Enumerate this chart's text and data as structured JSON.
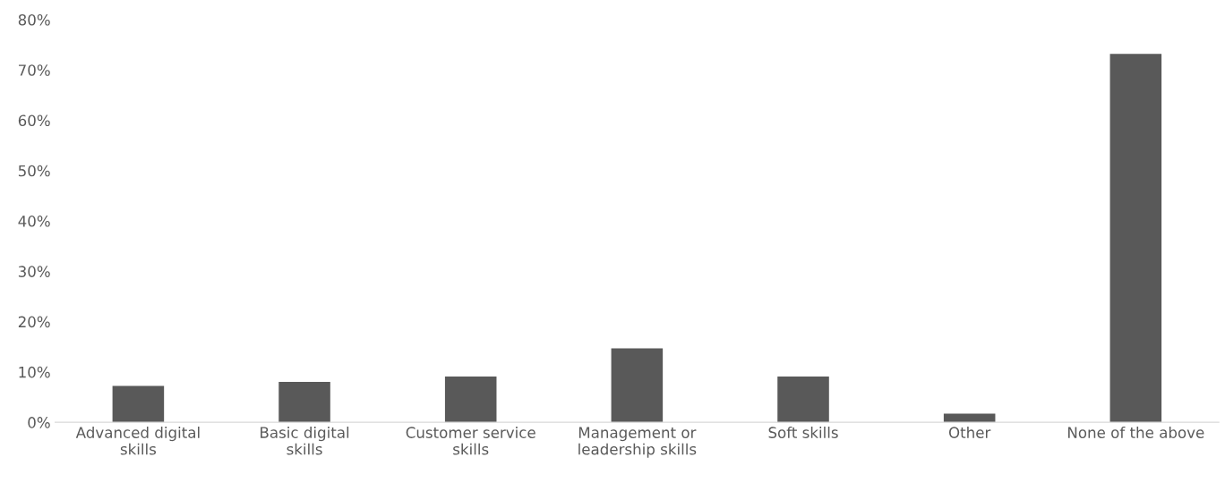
{
  "chart_data": {
    "type": "bar",
    "categories": [
      "Advanced digital skills",
      "Basic digital skills",
      "Customer service skills",
      "Management or leadership skills",
      "Soft skills",
      "Other",
      "None of the above"
    ],
    "values": [
      7.2,
      8.0,
      9.1,
      14.7,
      9.1,
      1.7,
      73.2
    ],
    "color": "#595959",
    "ylim": [
      0,
      80
    ],
    "yticks": [
      {
        "value": 0,
        "label": "0%"
      },
      {
        "value": 10,
        "label": "10%"
      },
      {
        "value": 20,
        "label": "20%"
      },
      {
        "value": 30,
        "label": "30%"
      },
      {
        "value": 40,
        "label": "40%"
      },
      {
        "value": 50,
        "label": "50%"
      },
      {
        "value": 60,
        "label": "60%"
      },
      {
        "value": 70,
        "label": "70%"
      },
      {
        "value": 80,
        "label": "80%"
      }
    ],
    "grid": false
  }
}
